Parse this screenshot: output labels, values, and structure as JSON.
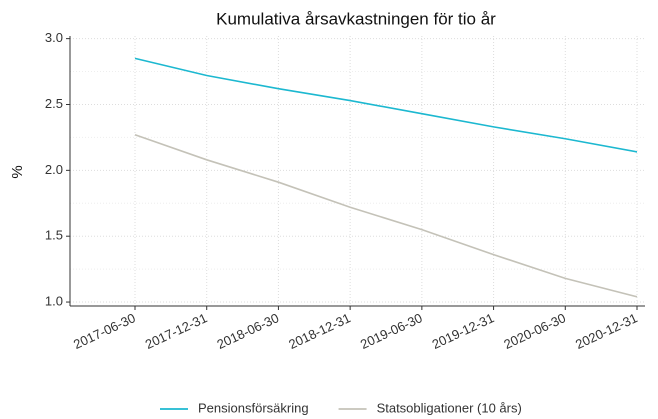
{
  "chart_data": {
    "type": "line",
    "title": "Kumulativa årsavkastningen för tio år",
    "y_label": "%",
    "categories": [
      "2017-06-30",
      "2017-12-31",
      "2018-06-30",
      "2018-12-31",
      "2019-06-30",
      "2019-12-31",
      "2020-06-30",
      "2020-12-31"
    ],
    "series": [
      {
        "name": "Pensionsförsäkring",
        "color": "#1cb8d0",
        "values": [
          2.85,
          2.72,
          2.62,
          2.53,
          2.43,
          2.33,
          2.24,
          2.14
        ]
      },
      {
        "name": "Statsobligationer (10 års)",
        "color": "#c4c2b8",
        "values": [
          2.27,
          2.08,
          1.91,
          1.72,
          1.55,
          1.36,
          1.18,
          1.04
        ]
      }
    ],
    "ylim": [
      0.97,
      3.02
    ],
    "yticks": [
      {
        "value": 1,
        "label": "1.0"
      },
      1.5,
      {
        "value": 2,
        "label": "2.0"
      },
      2.5,
      {
        "value": 3,
        "label": "3.0"
      }
    ],
    "grid": true,
    "legend": "bottom"
  }
}
